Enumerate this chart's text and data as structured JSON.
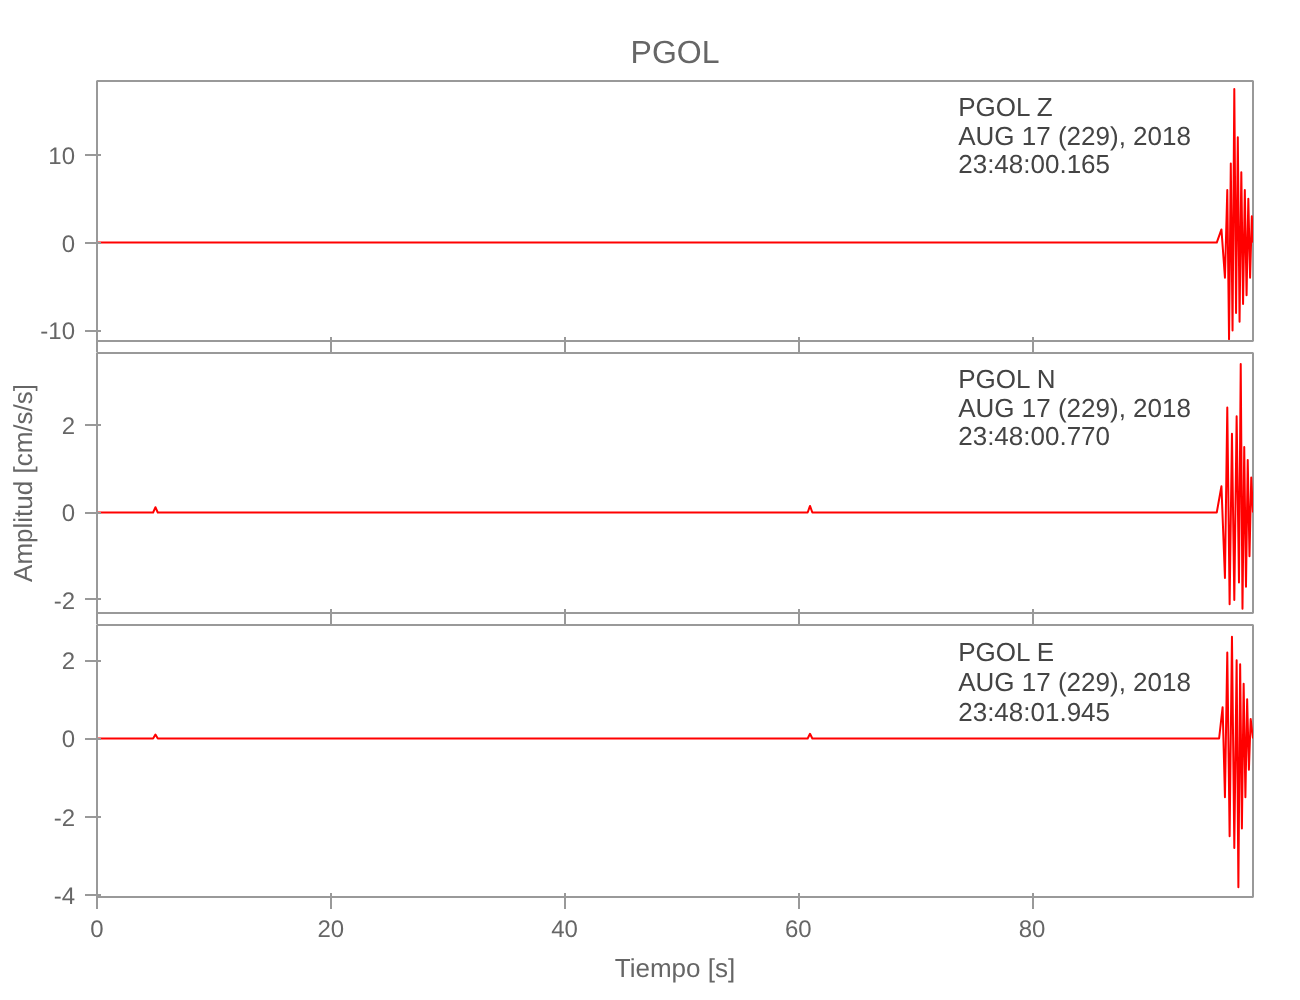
{
  "chart_data": [
    {
      "type": "line",
      "title": "PGOL",
      "annotations": [
        "PGOL  Z",
        "AUG 17 (229), 2018",
        "23:48:00.165"
      ],
      "xlim": [
        0,
        98.9
      ],
      "xticks": [
        0,
        20,
        40,
        60,
        80
      ],
      "ylim": [
        -11.2,
        18.4
      ],
      "yticks": [
        -10,
        0,
        10
      ],
      "tick_labels": "y",
      "grid": false,
      "series": [
        {
          "color": "#ff0000",
          "x": [
            0,
            10,
            20,
            30,
            40,
            50,
            60,
            70,
            80,
            90,
            95.8,
            96.2,
            96.5,
            96.7,
            96.85,
            97.0,
            97.15,
            97.3,
            97.45,
            97.6,
            97.75,
            97.9,
            98.05,
            98.2,
            98.35,
            98.5,
            98.65,
            98.8,
            98.9
          ],
          "values": [
            0,
            0,
            0,
            0,
            0,
            0,
            0,
            0,
            0,
            0,
            0,
            1.5,
            -4,
            6,
            -11,
            9,
            -10,
            17.5,
            -8,
            12,
            -9,
            8,
            -7,
            6,
            -6,
            5,
            -4,
            3,
            0
          ]
        }
      ]
    },
    {
      "type": "line",
      "ylabel": "Amplitud [cm/s/s]",
      "annotations": [
        "PGOL  N",
        "AUG 17 (229), 2018",
        "23:48:00.770"
      ],
      "xlim": [
        0,
        98.9
      ],
      "xticks": [
        0,
        20,
        40,
        60,
        80
      ],
      "ylim": [
        -2.3,
        3.65
      ],
      "yticks": [
        -2,
        0,
        2
      ],
      "tick_labels": "y",
      "grid": false,
      "series": [
        {
          "color": "#ff0000",
          "x": [
            0,
            4.8,
            5,
            5.2,
            20,
            40,
            60.8,
            61,
            61.2,
            80,
            95.8,
            96.2,
            96.5,
            96.7,
            96.9,
            97.1,
            97.3,
            97.5,
            97.7,
            97.85,
            98.0,
            98.15,
            98.3,
            98.45,
            98.6,
            98.75,
            98.9
          ],
          "values": [
            0,
            0,
            0.12,
            0,
            0,
            0,
            0,
            0.15,
            0,
            0,
            0,
            0.6,
            -1.5,
            2.4,
            -2.1,
            1.8,
            -2.0,
            2.2,
            -1.6,
            3.4,
            -2.2,
            1.5,
            -1.7,
            1.2,
            -1.0,
            0.8,
            0
          ]
        }
      ]
    },
    {
      "type": "line",
      "xlabel": "Tiempo [s]",
      "annotations": [
        "PGOL  E",
        "AUG 17 (229), 2018",
        "23:48:01.945"
      ],
      "xlim": [
        0,
        98.9
      ],
      "xticks": [
        0,
        20,
        40,
        60,
        80
      ],
      "ylim": [
        -4.05,
        2.9
      ],
      "yticks": [
        -4,
        -2,
        0,
        2
      ],
      "grid": false,
      "series": [
        {
          "color": "#ff0000",
          "x": [
            0,
            4.8,
            5,
            5.2,
            20,
            40,
            60.8,
            61,
            61.2,
            80,
            96.0,
            96.3,
            96.5,
            96.7,
            96.9,
            97.1,
            97.3,
            97.5,
            97.65,
            97.8,
            97.95,
            98.1,
            98.25,
            98.4,
            98.55,
            98.7,
            98.9
          ],
          "values": [
            0,
            0,
            0.1,
            0,
            0,
            0,
            0,
            0.12,
            0,
            0,
            0,
            0.8,
            -1.5,
            2.2,
            -2.5,
            2.6,
            -2.8,
            2.0,
            -3.8,
            1.9,
            -2.3,
            1.4,
            -1.5,
            1.0,
            -0.8,
            0.5,
            0
          ]
        }
      ]
    }
  ]
}
